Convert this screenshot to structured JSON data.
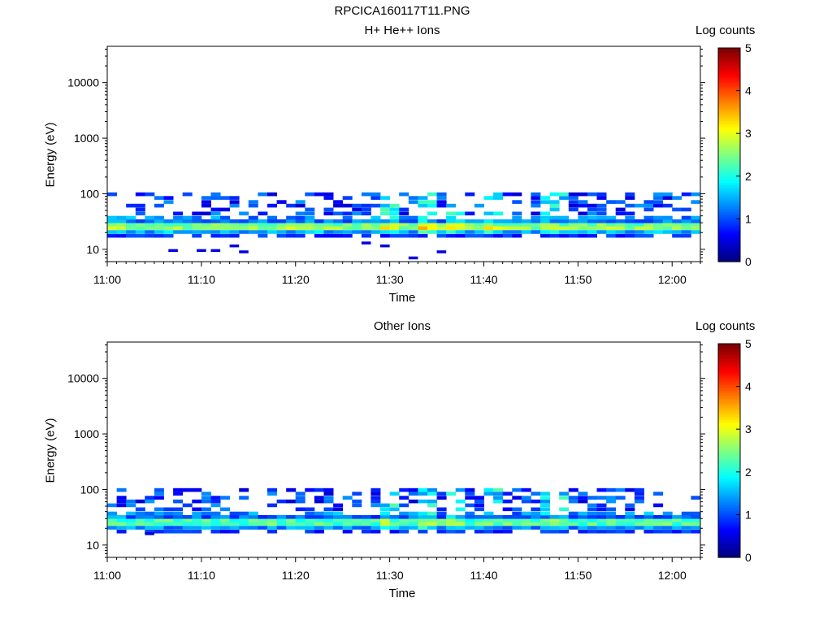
{
  "main_title": "RPCICA160117T11.PNG",
  "colors": {
    "colormap": [
      "#00007f",
      "#0000ff",
      "#0080ff",
      "#00ffff",
      "#80ff80",
      "#ffff00",
      "#ff8000",
      "#ff0000",
      "#7f0000"
    ],
    "axis": "#000000",
    "background": "#ffffff"
  },
  "chart_data": [
    {
      "type": "heatmap",
      "title": "H+ He++ Ions",
      "ylabel": "Energy (eV)",
      "xlabel": "Time",
      "y_scale": "log",
      "ylim": [
        6,
        45000
      ],
      "xlim": [
        "11:00",
        "12:03"
      ],
      "x_ticks": [
        "11:00",
        "11:10",
        "11:20",
        "11:30",
        "11:40",
        "11:50",
        "12:00"
      ],
      "y_ticks": [
        "10",
        "100",
        "1000",
        "10000"
      ],
      "colorbar": {
        "label": "Log counts",
        "range": [
          0,
          5
        ],
        "ticks": [
          "0",
          "1",
          "2",
          "3",
          "4",
          "5"
        ]
      },
      "time_bins_minutes": 63,
      "energy_rows_eV": [
        7,
        8.5,
        10,
        12,
        14.5,
        17.5,
        20.5,
        24,
        28,
        32,
        37,
        44,
        52,
        61,
        71,
        84,
        98
      ],
      "core_band_log_counts": [
        1.5,
        2.6,
        2.4,
        1.2
      ],
      "sparse_low_energy_points": [
        [
          6.5,
          9.5
        ],
        [
          9.5,
          9.5
        ],
        [
          11,
          9.5
        ],
        [
          13,
          11.5
        ],
        [
          14,
          9
        ],
        [
          27,
          13
        ],
        [
          29,
          11.5
        ],
        [
          32,
          7
        ],
        [
          35,
          9
        ]
      ],
      "bright_columns": [
        [
          28.5,
          3.0
        ],
        [
          33,
          3.2
        ],
        [
          36,
          3.1
        ],
        [
          40,
          2.9
        ],
        [
          45.5,
          2.8
        ],
        [
          47,
          2.7
        ]
      ]
    },
    {
      "type": "heatmap",
      "title": "Other Ions",
      "ylabel": "Energy (eV)",
      "xlabel": "Time",
      "y_scale": "log",
      "ylim": [
        6,
        45000
      ],
      "xlim": [
        "11:00",
        "12:03"
      ],
      "x_ticks": [
        "11:00",
        "11:10",
        "11:20",
        "11:30",
        "11:40",
        "11:50",
        "12:00"
      ],
      "y_ticks": [
        "10",
        "100",
        "1000",
        "10000"
      ],
      "colorbar": {
        "label": "Log counts",
        "range": [
          0,
          5
        ],
        "ticks": [
          "0",
          "1",
          "2",
          "3",
          "4",
          "5"
        ]
      },
      "time_bins_minutes": 63,
      "energy_rows_eV": [
        7,
        8.5,
        10,
        12,
        14.5,
        17.5,
        20.5,
        24,
        28,
        32,
        37,
        44,
        52,
        61,
        71,
        84,
        98
      ],
      "core_band_log_counts": [
        1.3,
        2.3,
        2.2,
        1.1
      ],
      "sparse_low_energy_points": [
        [
          4,
          16
        ]
      ],
      "bright_columns": [
        [
          28.5,
          2.9
        ],
        [
          33,
          3.1
        ],
        [
          36,
          3.0
        ],
        [
          40,
          2.8
        ],
        [
          45.5,
          2.7
        ],
        [
          47,
          2.9
        ]
      ]
    }
  ]
}
